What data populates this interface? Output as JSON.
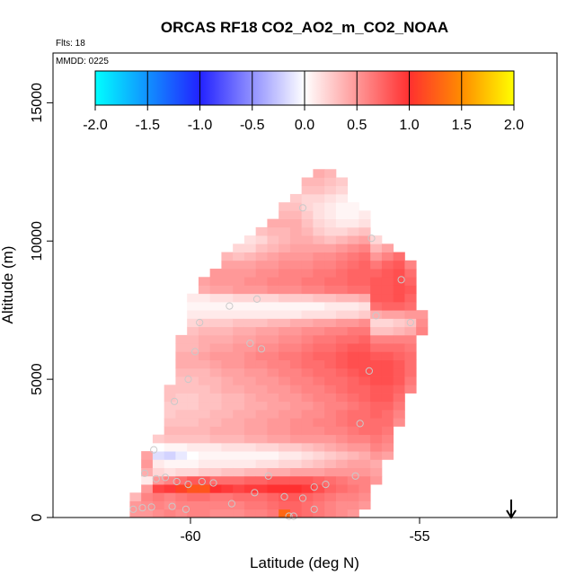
{
  "chart_data": {
    "type": "heatmap",
    "title": "ORCAS RF18 CO2_AO2_m_CO2_NOAA",
    "annotations": {
      "flights": "Flts: 18",
      "date": "MMDD: 0225"
    },
    "xlabel": "Latitude (deg N)",
    "ylabel": "Altitude (m)",
    "xlim": [
      -63,
      -52
    ],
    "ylim": [
      0,
      16800
    ],
    "x_ticks": [
      -60,
      -55
    ],
    "y_ticks": [
      0,
      5000,
      10000,
      15000
    ],
    "grid": false,
    "arrow_marker": {
      "x": -53,
      "direction": "down"
    },
    "colorbar": {
      "position": "top-inside",
      "range": [
        -2,
        2
      ],
      "ticks": [
        -2.0,
        -1.5,
        -1.0,
        -0.5,
        0.0,
        0.5,
        1.0,
        1.5,
        2.0
      ],
      "tick_labels": [
        "-2.0",
        "-1.5",
        "-1.0",
        "-0.5",
        "0.0",
        "0.5",
        "1.0",
        "1.5",
        "2.0"
      ],
      "colors": {
        "-2.0": "#00ffff",
        "-1.0": "#2222ff",
        "0.0": "#ffffff",
        "1.0": "#ff3030",
        "1.5": "#ff8c00",
        "2.0": "#ffff00"
      }
    },
    "cell_size": {
      "lat": 0.25,
      "alt": 300
    },
    "columns": [
      {
        "lat": -61.2,
        "bottom": 0,
        "values": [
          0.5,
          0.5,
          0.35
        ]
      },
      {
        "lat": -60.95,
        "bottom": 0,
        "values": [
          0.5,
          0.55,
          0.6,
          0.5,
          0.1,
          0.4,
          0.5,
          0.45
        ]
      },
      {
        "lat": -60.7,
        "bottom": 0,
        "values": [
          0.55,
          0.6,
          0.65,
          0.9,
          0.5,
          0.2,
          0.1,
          -0.15,
          0.0,
          0.25
        ]
      },
      {
        "lat": -60.45,
        "bottom": 0,
        "values": [
          0.6,
          0.55,
          0.6,
          0.95,
          0.6,
          0.15,
          0.05,
          -0.2,
          0.05,
          0.3,
          0.35,
          0.3,
          0.25,
          0.25,
          0.3,
          0.3
        ]
      },
      {
        "lat": -60.2,
        "bottom": 0,
        "values": [
          0.55,
          0.6,
          0.65,
          1.1,
          0.7,
          0.2,
          0.05,
          -0.1,
          0.05,
          0.3,
          0.35,
          0.3,
          0.3,
          0.25,
          0.25,
          0.3,
          0.3,
          0.35,
          0.4,
          0.4,
          0.35,
          0.35
        ]
      },
      {
        "lat": -59.95,
        "bottom": 0,
        "values": [
          0.6,
          0.6,
          0.7,
          1.2,
          0.8,
          0.2,
          0.05,
          0.0,
          0.1,
          0.3,
          0.35,
          0.3,
          0.3,
          0.25,
          0.25,
          0.3,
          0.3,
          0.35,
          0.4,
          0.4,
          0.35,
          0.35,
          0.3,
          0.2,
          0.1,
          0.05,
          0.1
        ]
      },
      {
        "lat": -59.7,
        "bottom": 0,
        "values": [
          0.6,
          0.6,
          0.7,
          1.2,
          0.8,
          0.25,
          0.1,
          0.05,
          0.1,
          0.3,
          0.35,
          0.35,
          0.3,
          0.3,
          0.3,
          0.3,
          0.35,
          0.35,
          0.4,
          0.45,
          0.4,
          0.4,
          0.35,
          0.25,
          0.1,
          0.05,
          0.1,
          0.4,
          0.45
        ]
      },
      {
        "lat": -59.45,
        "bottom": 0,
        "values": [
          0.55,
          0.6,
          0.65,
          1.0,
          0.7,
          0.25,
          0.1,
          0.05,
          0.1,
          0.35,
          0.4,
          0.35,
          0.35,
          0.3,
          0.3,
          0.35,
          0.35,
          0.4,
          0.45,
          0.5,
          0.45,
          0.4,
          0.35,
          0.25,
          0.1,
          0.05,
          0.15,
          0.45,
          0.5,
          0.5
        ]
      },
      {
        "lat": -59.2,
        "bottom": 0,
        "values": [
          0.55,
          0.6,
          0.65,
          0.95,
          0.7,
          0.3,
          0.1,
          0.05,
          0.15,
          0.35,
          0.4,
          0.4,
          0.35,
          0.35,
          0.35,
          0.4,
          0.4,
          0.45,
          0.5,
          0.5,
          0.45,
          0.4,
          0.35,
          0.25,
          0.1,
          0.05,
          0.15,
          0.45,
          0.5,
          0.5,
          0.45,
          0.35
        ]
      },
      {
        "lat": -58.95,
        "bottom": 0,
        "values": [
          0.55,
          0.6,
          0.7,
          0.9,
          0.7,
          0.3,
          0.1,
          0.05,
          0.15,
          0.35,
          0.4,
          0.4,
          0.4,
          0.35,
          0.35,
          0.4,
          0.45,
          0.45,
          0.5,
          0.5,
          0.5,
          0.45,
          0.4,
          0.3,
          0.1,
          0.05,
          0.2,
          0.5,
          0.5,
          0.5,
          0.45,
          0.3,
          0.2
        ]
      },
      {
        "lat": -58.7,
        "bottom": 0,
        "values": [
          0.6,
          0.65,
          0.7,
          0.95,
          0.75,
          0.35,
          0.1,
          0.05,
          0.15,
          0.4,
          0.45,
          0.45,
          0.4,
          0.4,
          0.4,
          0.45,
          0.45,
          0.5,
          0.55,
          0.55,
          0.5,
          0.45,
          0.4,
          0.3,
          0.1,
          0.05,
          0.2,
          0.5,
          0.55,
          0.5,
          0.45,
          0.35,
          0.2,
          0.15
        ]
      },
      {
        "lat": -58.45,
        "bottom": 0,
        "values": [
          0.6,
          0.65,
          0.7,
          0.95,
          0.75,
          0.35,
          0.15,
          0.05,
          0.2,
          0.4,
          0.45,
          0.45,
          0.45,
          0.4,
          0.45,
          0.45,
          0.5,
          0.5,
          0.55,
          0.6,
          0.55,
          0.5,
          0.45,
          0.3,
          0.1,
          0.05,
          0.2,
          0.5,
          0.55,
          0.55,
          0.5,
          0.4,
          0.3,
          0.2,
          0.3
        ]
      },
      {
        "lat": -58.2,
        "bottom": 0,
        "values": [
          0.65,
          0.7,
          0.75,
          1.0,
          0.8,
          0.4,
          0.15,
          0.05,
          0.2,
          0.45,
          0.5,
          0.5,
          0.45,
          0.45,
          0.45,
          0.5,
          0.5,
          0.55,
          0.6,
          0.6,
          0.55,
          0.5,
          0.45,
          0.35,
          0.1,
          0.05,
          0.2,
          0.55,
          0.6,
          0.55,
          0.5,
          0.45,
          0.35,
          0.3,
          0.35,
          0.4
        ]
      },
      {
        "lat": -57.95,
        "bottom": 0,
        "values": [
          1.3,
          0.75,
          0.8,
          1.0,
          0.8,
          0.4,
          0.2,
          0.1,
          0.25,
          0.45,
          0.5,
          0.5,
          0.5,
          0.45,
          0.5,
          0.5,
          0.55,
          0.6,
          0.6,
          0.65,
          0.6,
          0.55,
          0.5,
          0.35,
          0.1,
          0.05,
          0.25,
          0.55,
          0.6,
          0.6,
          0.55,
          0.5,
          0.4,
          0.35,
          0.35,
          0.4,
          0.35,
          0.3
        ]
      },
      {
        "lat": -57.7,
        "bottom": 0,
        "values": [
          0.75,
          0.75,
          0.8,
          1.0,
          0.8,
          0.45,
          0.2,
          0.1,
          0.25,
          0.5,
          0.55,
          0.55,
          0.5,
          0.5,
          0.5,
          0.55,
          0.6,
          0.6,
          0.65,
          0.65,
          0.6,
          0.55,
          0.5,
          0.4,
          0.1,
          0.05,
          0.25,
          0.55,
          0.6,
          0.6,
          0.55,
          0.5,
          0.45,
          0.4,
          0.4,
          0.4,
          0.35,
          0.3,
          0.25
        ]
      },
      {
        "lat": -57.45,
        "bottom": 0,
        "values": [
          0.7,
          0.7,
          0.75,
          0.95,
          0.8,
          0.45,
          0.25,
          0.15,
          0.3,
          0.5,
          0.55,
          0.55,
          0.55,
          0.5,
          0.55,
          0.6,
          0.6,
          0.65,
          0.7,
          0.7,
          0.65,
          0.6,
          0.55,
          0.4,
          0.15,
          0.05,
          0.25,
          0.6,
          0.65,
          0.6,
          0.55,
          0.5,
          0.45,
          0.4,
          0.35,
          0.3,
          0.25,
          0.2,
          0.2,
          0.3,
          0.35
        ]
      },
      {
        "lat": -57.2,
        "bottom": 0,
        "values": [
          0.65,
          0.65,
          0.7,
          0.85,
          0.75,
          0.45,
          0.3,
          0.2,
          0.35,
          0.5,
          0.55,
          0.6,
          0.55,
          0.55,
          0.6,
          0.6,
          0.65,
          0.7,
          0.7,
          0.75,
          0.7,
          0.65,
          0.55,
          0.45,
          0.15,
          0.05,
          0.3,
          0.6,
          0.65,
          0.65,
          0.6,
          0.55,
          0.45,
          0.35,
          0.25,
          0.2,
          0.15,
          0.15,
          0.2,
          0.3,
          0.35,
          0.4
        ]
      },
      {
        "lat": -56.95,
        "bottom": 0,
        "values": [
          0.6,
          0.6,
          0.65,
          0.75,
          0.7,
          0.5,
          0.35,
          0.25,
          0.4,
          0.5,
          0.6,
          0.6,
          0.6,
          0.6,
          0.6,
          0.65,
          0.7,
          0.7,
          0.75,
          0.75,
          0.7,
          0.65,
          0.6,
          0.45,
          0.15,
          0.1,
          0.3,
          0.65,
          0.7,
          0.65,
          0.6,
          0.55,
          0.45,
          0.3,
          0.2,
          0.15,
          0.1,
          0.1,
          0.15,
          0.25,
          0.3,
          0.35
        ]
      },
      {
        "lat": -56.7,
        "bottom": 0,
        "values": [
          0.55,
          0.55,
          0.6,
          0.7,
          0.65,
          0.5,
          0.4,
          0.3,
          0.45,
          0.55,
          0.6,
          0.65,
          0.65,
          0.6,
          0.65,
          0.7,
          0.7,
          0.75,
          0.8,
          0.8,
          0.75,
          0.7,
          0.6,
          0.5,
          0.2,
          0.1,
          0.35,
          0.65,
          0.7,
          0.7,
          0.65,
          0.6,
          0.5,
          0.35,
          0.2,
          0.1,
          0.05,
          0.05,
          0.1,
          0.2,
          0.25
        ]
      },
      {
        "lat": -56.45,
        "bottom": 0,
        "values": [
          0.5,
          0.55,
          0.6,
          0.65,
          0.6,
          0.5,
          0.45,
          0.35,
          0.5,
          0.6,
          0.65,
          0.7,
          0.7,
          0.65,
          0.7,
          0.75,
          0.75,
          0.8,
          0.85,
          0.85,
          0.8,
          0.7,
          0.65,
          0.5,
          0.2,
          0.1,
          0.35,
          0.7,
          0.75,
          0.75,
          0.7,
          0.65,
          0.55,
          0.4,
          0.25,
          0.1,
          0.05,
          0.05
        ]
      },
      {
        "lat": -56.2,
        "bottom": 300,
        "values": [
          0.5,
          0.55,
          0.6,
          0.6,
          0.5,
          0.45,
          0.4,
          0.5,
          0.6,
          0.7,
          0.7,
          0.7,
          0.7,
          0.75,
          0.75,
          0.8,
          0.85,
          0.85,
          0.85,
          0.8,
          0.75,
          0.65,
          0.55,
          0.25,
          0.15,
          0.4,
          0.7,
          0.75,
          0.75,
          0.75,
          0.7,
          0.6,
          0.45,
          0.3,
          0.15,
          0.1
        ]
      },
      {
        "lat": -55.95,
        "bottom": 1200,
        "values": [
          0.5,
          0.45,
          0.4,
          0.5,
          0.6,
          0.65,
          0.7,
          0.7,
          0.75,
          0.75,
          0.8,
          0.8,
          0.85,
          0.85,
          0.85,
          0.8,
          0.7,
          0.6,
          0.3,
          0.2,
          0.4,
          0.7,
          0.8,
          0.8,
          0.8,
          0.75,
          0.65,
          0.5,
          0.35,
          0.2
        ]
      },
      {
        "lat": -55.7,
        "bottom": 2100,
        "values": [
          0.45,
          0.55,
          0.6,
          0.65,
          0.7,
          0.7,
          0.75,
          0.8,
          0.8,
          0.85,
          0.85,
          0.85,
          0.8,
          0.7,
          0.6,
          0.3,
          0.2,
          0.45,
          0.75,
          0.8,
          0.8,
          0.8,
          0.8,
          0.75,
          0.6,
          0.45
        ]
      },
      {
        "lat": -55.45,
        "bottom": 3300,
        "values": [
          0.55,
          0.6,
          0.65,
          0.7,
          0.75,
          0.8,
          0.8,
          0.8,
          0.75,
          0.7,
          0.6,
          0.35,
          0.25,
          0.45,
          0.75,
          0.85,
          0.85,
          0.85,
          0.85,
          0.8,
          0.7
        ]
      },
      {
        "lat": -55.2,
        "bottom": 4500,
        "values": [
          0.6,
          0.65,
          0.7,
          0.7,
          0.7,
          0.65,
          0.6,
          0.4,
          0.3,
          0.5,
          0.7,
          0.75,
          0.8,
          0.75,
          0.7,
          0.6
        ]
      },
      {
        "lat": -54.95,
        "bottom": 6600,
        "values": [
          0.6,
          0.55,
          0.5
        ]
      }
    ],
    "sample_points": [
      {
        "lat": -61.25,
        "alt": 300
      },
      {
        "lat": -61.05,
        "alt": 350
      },
      {
        "lat": -60.85,
        "alt": 380
      },
      {
        "lat": -61.0,
        "alt": 1600
      },
      {
        "lat": -60.75,
        "alt": 1400
      },
      {
        "lat": -60.55,
        "alt": 1450
      },
      {
        "lat": -60.3,
        "alt": 1300
      },
      {
        "lat": -60.4,
        "alt": 400
      },
      {
        "lat": -60.1,
        "alt": 300
      },
      {
        "lat": -60.05,
        "alt": 1200
      },
      {
        "lat": -59.75,
        "alt": 1300
      },
      {
        "lat": -59.5,
        "alt": 1250
      },
      {
        "lat": -59.1,
        "alt": 500
      },
      {
        "lat": -58.6,
        "alt": 900
      },
      {
        "lat": -58.3,
        "alt": 1500
      },
      {
        "lat": -57.95,
        "alt": 750
      },
      {
        "lat": -57.55,
        "alt": 700
      },
      {
        "lat": -57.3,
        "alt": 1100
      },
      {
        "lat": -57.05,
        "alt": 1200
      },
      {
        "lat": -57.3,
        "alt": 300
      },
      {
        "lat": -57.75,
        "alt": 50
      },
      {
        "lat": -57.85,
        "alt": 50
      },
      {
        "lat": -56.4,
        "alt": 1500
      },
      {
        "lat": -56.3,
        "alt": 3400
      },
      {
        "lat": -56.1,
        "alt": 5300
      },
      {
        "lat": -55.95,
        "alt": 7300
      },
      {
        "lat": -55.4,
        "alt": 8600
      },
      {
        "lat": -55.2,
        "alt": 7050
      },
      {
        "lat": -56.05,
        "alt": 10100
      },
      {
        "lat": -57.55,
        "alt": 11200
      },
      {
        "lat": -58.55,
        "alt": 7900
      },
      {
        "lat": -59.15,
        "alt": 7650
      },
      {
        "lat": -59.8,
        "alt": 7050
      },
      {
        "lat": -59.9,
        "alt": 6000
      },
      {
        "lat": -58.7,
        "alt": 6300
      },
      {
        "lat": -58.45,
        "alt": 6100
      },
      {
        "lat": -60.05,
        "alt": 5000
      },
      {
        "lat": -60.35,
        "alt": 4200
      },
      {
        "lat": -60.8,
        "alt": 2450
      }
    ]
  }
}
